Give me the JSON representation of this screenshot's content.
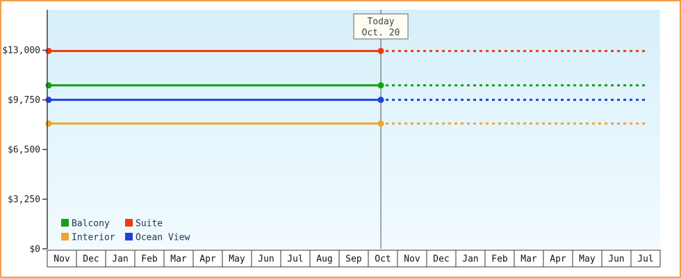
{
  "chart_data": {
    "type": "line",
    "title": "",
    "x": {
      "months": [
        "Nov",
        "Dec",
        "Jan",
        "Feb",
        "Mar",
        "Apr",
        "May",
        "Jun",
        "Jul",
        "Aug",
        "Sep",
        "Oct",
        "Nov",
        "Dec",
        "Jan",
        "Feb",
        "Mar",
        "Apr",
        "May",
        "Jun",
        "Jul"
      ]
    },
    "y": {
      "ticks": [
        {
          "value": 0,
          "label": "$0"
        },
        {
          "value": 3250,
          "label": "$3,250"
        },
        {
          "value": 6500,
          "label": "$6,500"
        },
        {
          "value": 9750,
          "label": "$9,750"
        },
        {
          "value": 13000,
          "label": "$13,000"
        }
      ],
      "max": 15650,
      "min": 0
    },
    "series": [
      {
        "name": "Balcony",
        "color": "#12a112",
        "value": 10700
      },
      {
        "name": "Suite",
        "color": "#ec3b10",
        "value": 12950
      },
      {
        "name": "Interior",
        "color": "#f0a42c",
        "value": 8200
      },
      {
        "name": "Ocean View",
        "color": "#2040dc",
        "value": 9750
      }
    ],
    "today": {
      "line1": "Today",
      "line2": "Oct. 20",
      "month_position": 11.43
    },
    "legend": {
      "order": [
        "Balcony",
        "Suite",
        "Interior",
        "Ocean View"
      ],
      "columns": 2,
      "position": "bottom-left"
    },
    "style": {
      "solid_until_today": true,
      "dotted_after_today": true,
      "frame_border": "#f59c4b",
      "plot_bg_top": "#d6effa",
      "plot_bg_bottom": "#f2fbfe",
      "axis_color": "#3c3c3c",
      "tick_text_color": "#222222",
      "month_text_color": "#111111",
      "legend_text_color": "#223355",
      "today_box_fill": "#fdfdf2",
      "today_box_border": "#666666",
      "today_text_color": "#444444",
      "today_line_color": "#555555",
      "month_cell_fill": "#ffffff",
      "month_cell_border": "#333333"
    }
  }
}
